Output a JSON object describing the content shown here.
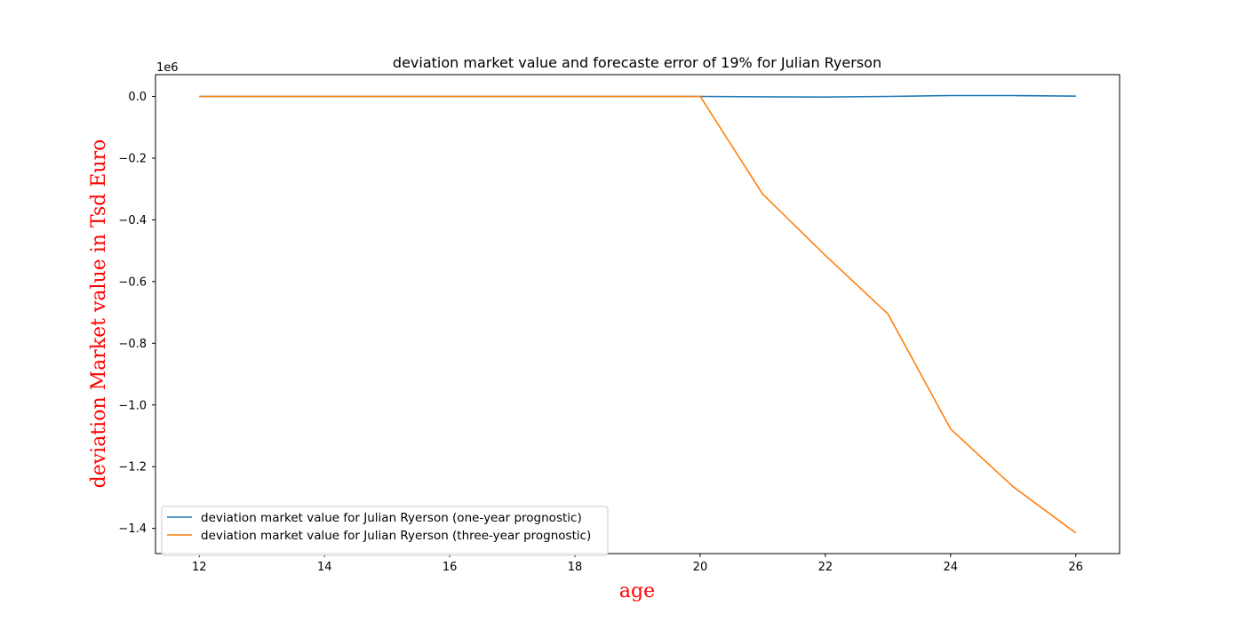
{
  "chart_data": {
    "type": "line",
    "title": "deviation market value and forecaste error of 19% for Julian Ryerson",
    "xlabel": "age",
    "ylabel": "deviation Market value in Tsd Euro",
    "label_color": "#ff0000",
    "y_offset_text": "1e6",
    "xlim": [
      11.3,
      26.7
    ],
    "ylim": [
      -1.4817,
      0.0707
    ],
    "x_ticks": [
      12,
      14,
      16,
      18,
      20,
      22,
      24,
      26
    ],
    "x_tick_labels": [
      "12",
      "14",
      "16",
      "18",
      "20",
      "22",
      "24",
      "26"
    ],
    "y_ticks": [
      0.0,
      -0.2,
      -0.4,
      -0.6,
      -0.8,
      -1.0,
      -1.2,
      -1.4
    ],
    "y_tick_labels": [
      "0.0",
      "−0.2",
      "−0.4",
      "−0.6",
      "−0.8",
      "−1.0",
      "−1.2",
      "−1.4"
    ],
    "grid": false,
    "legend_position": "lower-left",
    "x": [
      12,
      13,
      14,
      15,
      16,
      17,
      18,
      19,
      20,
      21,
      22,
      23,
      24,
      25,
      26
    ],
    "series": [
      {
        "name": "deviation market value for Julian Ryerson (one-year prognostic)",
        "color": "#1f77b4",
        "values": [
          0,
          0,
          0,
          0,
          0,
          0,
          0,
          0,
          0,
          -0.001,
          -0.002,
          0.0,
          0.003,
          0.003,
          0.001
        ]
      },
      {
        "name": "deviation market value for Julian Ryerson (three-year prognostic)",
        "color": "#ff7f0e",
        "values": [
          0,
          0,
          0,
          0,
          0,
          0,
          0,
          0,
          0,
          -0.317,
          -0.515,
          -0.705,
          -1.078,
          -1.265,
          -1.415
        ]
      }
    ]
  }
}
